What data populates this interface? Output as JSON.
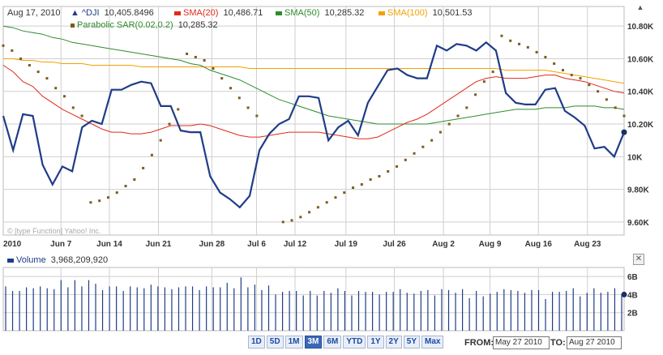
{
  "header": {
    "date": "Aug 17, 2010",
    "dji_label": "^DJI",
    "dji_value": "10,405.8496",
    "sma20_label": "SMA(20)",
    "sma20_value": "10,486.71",
    "sma50_label": "SMA(50)",
    "sma50_value": "10,285.32",
    "sma100_label": "SMA(100)",
    "sma100_value": "10,501.53",
    "sar_label": "Parabolic SAR(0.02,0.2)",
    "sar_value": "10,285.32"
  },
  "watermark": "© [type Function] Yahoo! Inc.",
  "volume_header": {
    "label": "Volume",
    "value": "3,968,209,920"
  },
  "range_buttons": [
    "1D",
    "5D",
    "1M",
    "3M",
    "6M",
    "YTD",
    "1Y",
    "2Y",
    "5Y",
    "Max"
  ],
  "active_range": "3M",
  "from_label": "FROM:",
  "from_value": "May 27 2010",
  "to_label": "TO:",
  "to_value": "Aug 27 2010",
  "colors": {
    "dji": "#1f3c88",
    "sma20": "#e02a1a",
    "sma50": "#2e8b2e",
    "sma100": "#f5a000",
    "sar": "#7a5c1e",
    "volume": "#1f3c88",
    "grid": "#cfcfcf"
  },
  "chart_data": [
    {
      "type": "line",
      "x_ticks": [
        "2010",
        "Jun 7",
        "Jun 14",
        "Jun 21",
        "Jun 28",
        "Jul 6",
        "Jul 12",
        "Jul 19",
        "Jul 26",
        "Aug 2",
        "Aug 9",
        "Aug 16",
        "Aug 23"
      ],
      "y_ticks": [
        "9.60K",
        "9.80K",
        "10K",
        "10.20K",
        "10.40K",
        "10.60K",
        "10.80K"
      ],
      "ylim": [
        9520,
        10920
      ],
      "series": [
        {
          "name": "^DJI",
          "values": [
            10250,
            10040,
            10260,
            10250,
            9950,
            9830,
            9940,
            9910,
            10180,
            10220,
            10200,
            10410,
            10410,
            10440,
            10460,
            10450,
            10310,
            10310,
            10160,
            10150,
            10150,
            9880,
            9780,
            9740,
            9690,
            9760,
            10040,
            10140,
            10200,
            10230,
            10370,
            10370,
            10360,
            10100,
            10180,
            10220,
            10130,
            10330,
            10430,
            10530,
            10540,
            10500,
            10480,
            10480,
            10680,
            10650,
            10690,
            10680,
            10650,
            10700,
            10650,
            10390,
            10330,
            10320,
            10320,
            10410,
            10420,
            10280,
            10240,
            10190,
            10050,
            10060,
            10000,
            10150
          ]
        },
        {
          "name": "SMA(20)",
          "values": [
            10560,
            10520,
            10460,
            10430,
            10370,
            10330,
            10290,
            10260,
            10230,
            10200,
            10170,
            10150,
            10150,
            10140,
            10140,
            10150,
            10170,
            10190,
            10190,
            10190,
            10200,
            10190,
            10170,
            10150,
            10130,
            10120,
            10120,
            10130,
            10140,
            10150,
            10150,
            10150,
            10150,
            10140,
            10130,
            10120,
            10110,
            10110,
            10120,
            10150,
            10180,
            10210,
            10230,
            10260,
            10300,
            10340,
            10380,
            10420,
            10460,
            10480,
            10490,
            10480,
            10480,
            10480,
            10490,
            10500,
            10500,
            10480,
            10470,
            10460,
            10440,
            10420,
            10400,
            10390
          ]
        },
        {
          "name": "SMA(50)",
          "values": [
            10800,
            10790,
            10770,
            10760,
            10750,
            10730,
            10720,
            10700,
            10690,
            10680,
            10670,
            10660,
            10650,
            10640,
            10630,
            10620,
            10610,
            10600,
            10590,
            10570,
            10560,
            10530,
            10510,
            10490,
            10470,
            10440,
            10410,
            10380,
            10350,
            10330,
            10310,
            10290,
            10270,
            10250,
            10240,
            10230,
            10220,
            10210,
            10200,
            10200,
            10200,
            10200,
            10200,
            10200,
            10210,
            10220,
            10230,
            10240,
            10250,
            10260,
            10270,
            10280,
            10290,
            10290,
            10290,
            10300,
            10300,
            10300,
            10310,
            10310,
            10310,
            10300,
            10300,
            10290
          ]
        },
        {
          "name": "SMA(100)",
          "values": [
            10600,
            10600,
            10590,
            10590,
            10580,
            10580,
            10570,
            10570,
            10570,
            10560,
            10560,
            10560,
            10560,
            10560,
            10550,
            10550,
            10550,
            10550,
            10550,
            10550,
            10550,
            10550,
            10550,
            10550,
            10550,
            10540,
            10540,
            10540,
            10540,
            10540,
            10540,
            10540,
            10540,
            10540,
            10540,
            10540,
            10540,
            10540,
            10540,
            10540,
            10540,
            10540,
            10540,
            10540,
            10540,
            10540,
            10540,
            10540,
            10540,
            10540,
            10540,
            10530,
            10530,
            10530,
            10530,
            10530,
            10520,
            10510,
            10500,
            10490,
            10480,
            10470,
            10460,
            10450
          ]
        }
      ],
      "sar_points": [
        {
          "i": 0,
          "v": 10680
        },
        {
          "i": 1,
          "v": 10650
        },
        {
          "i": 2,
          "v": 10600
        },
        {
          "i": 3,
          "v": 10560
        },
        {
          "i": 4,
          "v": 10520
        },
        {
          "i": 5,
          "v": 10480
        },
        {
          "i": 6,
          "v": 10420
        },
        {
          "i": 7,
          "v": 10370
        },
        {
          "i": 8,
          "v": 10300
        },
        {
          "i": 9,
          "v": 10250
        },
        {
          "i": 10,
          "v": 9720
        },
        {
          "i": 11,
          "v": 9730
        },
        {
          "i": 12,
          "v": 9750
        },
        {
          "i": 13,
          "v": 9780
        },
        {
          "i": 14,
          "v": 9820
        },
        {
          "i": 15,
          "v": 9860
        },
        {
          "i": 16,
          "v": 9930
        },
        {
          "i": 17,
          "v": 10010
        },
        {
          "i": 18,
          "v": 10100
        },
        {
          "i": 19,
          "v": 10200
        },
        {
          "i": 20,
          "v": 10290
        },
        {
          "i": 21,
          "v": 10630
        },
        {
          "i": 22,
          "v": 10610
        },
        {
          "i": 23,
          "v": 10590
        },
        {
          "i": 24,
          "v": 10540
        },
        {
          "i": 25,
          "v": 10480
        },
        {
          "i": 26,
          "v": 10420
        },
        {
          "i": 27,
          "v": 10360
        },
        {
          "i": 28,
          "v": 10300
        },
        {
          "i": 29,
          "v": 10250
        },
        {
          "i": 32,
          "v": 9600
        },
        {
          "i": 33,
          "v": 9610
        },
        {
          "i": 34,
          "v": 9630
        },
        {
          "i": 35,
          "v": 9660
        },
        {
          "i": 36,
          "v": 9690
        },
        {
          "i": 37,
          "v": 9720
        },
        {
          "i": 38,
          "v": 9750
        },
        {
          "i": 39,
          "v": 9780
        },
        {
          "i": 40,
          "v": 9810
        },
        {
          "i": 41,
          "v": 9830
        },
        {
          "i": 42,
          "v": 9860
        },
        {
          "i": 43,
          "v": 9880
        },
        {
          "i": 44,
          "v": 9910
        },
        {
          "i": 45,
          "v": 9940
        },
        {
          "i": 46,
          "v": 9980
        },
        {
          "i": 47,
          "v": 10020
        },
        {
          "i": 48,
          "v": 10060
        },
        {
          "i": 49,
          "v": 10100
        },
        {
          "i": 50,
          "v": 10150
        },
        {
          "i": 51,
          "v": 10200
        },
        {
          "i": 52,
          "v": 10250
        },
        {
          "i": 53,
          "v": 10300
        },
        {
          "i": 54,
          "v": 10380
        },
        {
          "i": 55,
          "v": 10460
        },
        {
          "i": 56,
          "v": 10520
        },
        {
          "i": 57,
          "v": 10740
        },
        {
          "i": 58,
          "v": 10710
        },
        {
          "i": 59,
          "v": 10690
        },
        {
          "i": 60,
          "v": 10670
        },
        {
          "i": 61,
          "v": 10640
        },
        {
          "i": 62,
          "v": 10610
        },
        {
          "i": 63,
          "v": 10570
        },
        {
          "i": 64,
          "v": 10530
        },
        {
          "i": 65,
          "v": 10500
        },
        {
          "i": 66,
          "v": 10480
        },
        {
          "i": 67,
          "v": 10440
        },
        {
          "i": 68,
          "v": 10400
        },
        {
          "i": 69,
          "v": 10350
        },
        {
          "i": 70,
          "v": 10300
        },
        {
          "i": 71,
          "v": 10250
        }
      ],
      "last_marker": 10150
    },
    {
      "type": "bar",
      "title": "Volume",
      "y_ticks": [
        "2B",
        "4B",
        "6B"
      ],
      "ylim": [
        0,
        7
      ],
      "values": [
        4.9,
        4.4,
        4.4,
        4.8,
        4.7,
        4.9,
        4.7,
        4.6,
        5.6,
        4.8,
        5.6,
        4.9,
        5.6,
        5.2,
        4.5,
        4.9,
        4.9,
        4.4,
        4.9,
        4.8,
        4.7,
        5.1,
        4.9,
        4.8,
        4.6,
        4.8,
        4.9,
        4.9,
        4.5,
        4.9,
        4.8,
        4.8,
        5.3,
        4.7,
        5.9,
        4.8,
        5.1,
        4.5,
        5.0,
        4.0,
        4.3,
        4.4,
        4.4,
        3.9,
        4.4,
        3.9,
        4.4,
        4.2,
        4.7,
        4.4,
        3.9,
        4.4,
        4.3,
        4.3,
        4.0,
        4.3,
        4.3,
        4.6,
        4.2,
        4.1,
        4.4,
        4.5,
        3.9,
        4.6,
        4.5,
        4.2,
        4.6,
        3.6,
        4.4,
        3.8,
        4.1,
        4.3,
        4.6,
        4.5,
        4.4,
        4.2,
        4.5,
        4.5,
        3.5,
        4.3,
        4.3,
        4.4,
        4.7,
        3.8,
        4.2,
        4.7,
        4.2,
        4.3,
        4.7,
        4.0
      ],
      "last_marker": 4.0
    }
  ]
}
